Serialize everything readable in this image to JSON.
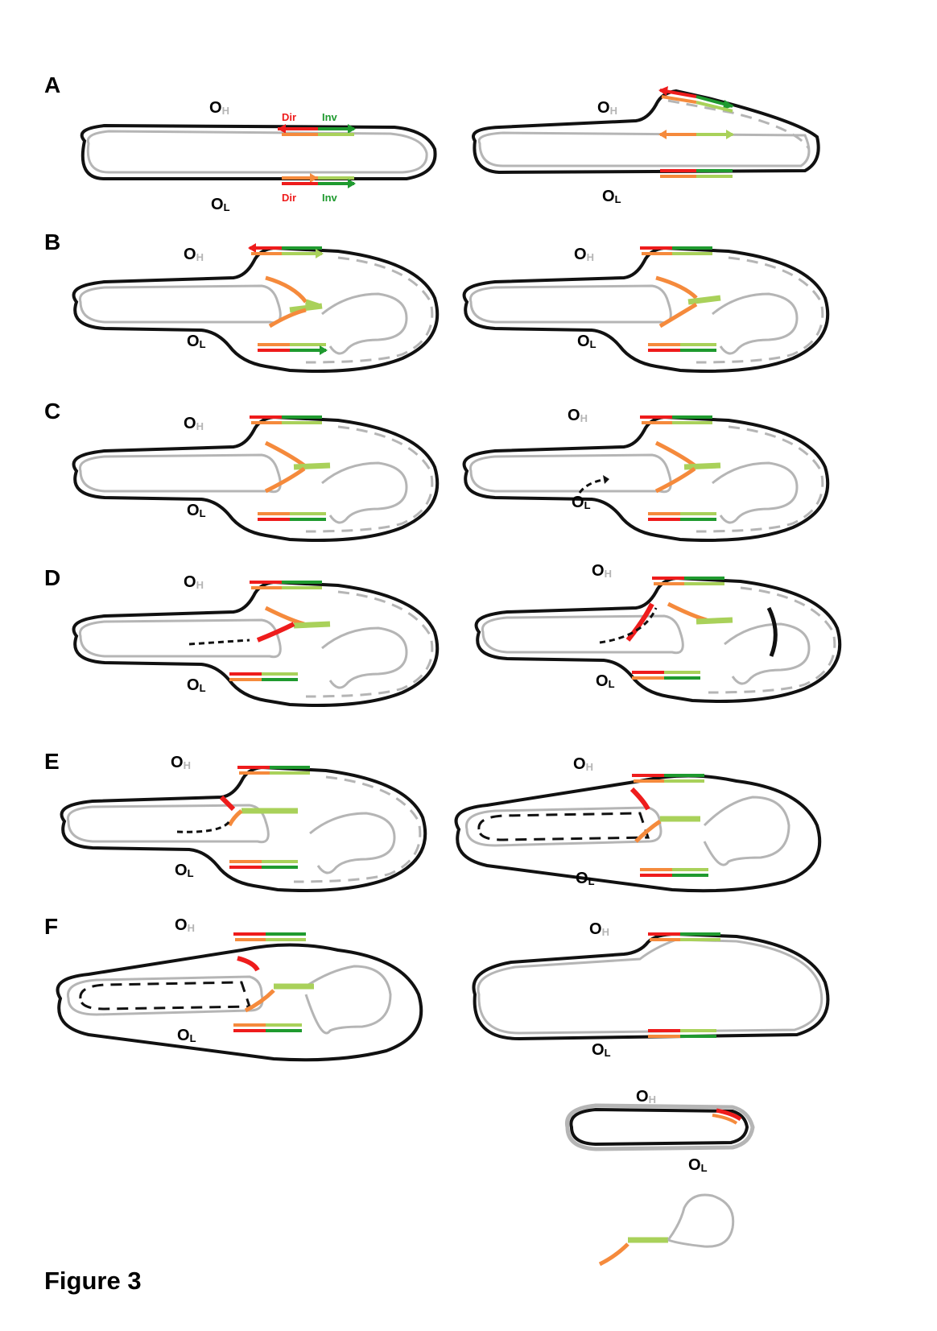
{
  "panel_letters": [
    "A",
    "B",
    "C",
    "D",
    "E",
    "F"
  ],
  "origin_labels": {
    "heavy": {
      "letter": "O",
      "subscript": "H"
    },
    "light": {
      "letter": "O",
      "subscript": "L"
    }
  },
  "panel_A_labels": {
    "direct": "Dir",
    "inverted": "Inv"
  },
  "caption": "Figure 3",
  "colors": {
    "heavy_strand": "#111111",
    "light_strand": "#b5b5b5",
    "nascent_strand": "#b5b5b5",
    "direct_repeat_dark": "#ee1c1c",
    "direct_repeat_light": "#f58a3c",
    "inverted_repeat_dark": "#1f9a2f",
    "inverted_repeat_light": "#a9d15a",
    "new_synthesis": "#111111"
  }
}
